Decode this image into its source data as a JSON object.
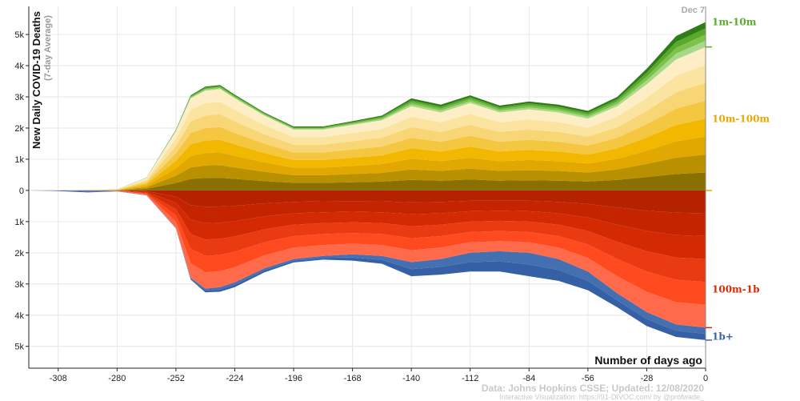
{
  "chart_data": {
    "type": "area",
    "subtype": "streamgraph",
    "ylabel": "New Daily COVID-19 Deaths",
    "ylabel_sub": "(7-day Average)",
    "xlabel": "Number of days ago",
    "x_ticks": [
      -308,
      -280,
      -252,
      -224,
      -196,
      -168,
      -140,
      -112,
      -84,
      -56,
      -28,
      0
    ],
    "x_tick_labels": [
      "-308",
      "-280",
      "-252",
      "-224",
      "-196",
      "-168",
      "-140",
      "-112",
      "-84",
      "-56",
      "-28",
      "0"
    ],
    "x_range": [
      -322,
      0
    ],
    "y_ticks": [
      5000,
      4000,
      3000,
      2000,
      1000,
      0,
      -1000,
      -2000,
      -3000,
      -4000,
      -5000
    ],
    "y_tick_labels": [
      "5k",
      "4k",
      "3k",
      "2k",
      "1k",
      "0",
      "1k",
      "2k",
      "3k",
      "4k",
      "5k"
    ],
    "y_range": [
      -5700,
      5900
    ],
    "end_date_label": "Dec 7",
    "x": [
      -322,
      -308,
      -294,
      -280,
      -266,
      -252,
      -245,
      -238,
      -231,
      -224,
      -210,
      -196,
      -182,
      -168,
      -154,
      -140,
      -126,
      -112,
      -98,
      -84,
      -70,
      -56,
      -42,
      -28,
      -14,
      0
    ],
    "series": [
      {
        "name": "1b+",
        "color": "#3a64a8",
        "values": [
          0,
          20,
          60,
          10,
          10,
          20,
          60,
          120,
          150,
          150,
          130,
          110,
          120,
          200,
          250,
          450,
          500,
          600,
          650,
          750,
          700,
          600,
          450,
          450,
          400,
          400
        ]
      },
      {
        "name": "100m-1b",
        "color": "#d42a04",
        "values": [
          0,
          2,
          5,
          20,
          150,
          1200,
          2800,
          3150,
          3100,
          2950,
          2500,
          2200,
          2100,
          2050,
          2100,
          2300,
          2200,
          2000,
          1950,
          2000,
          2200,
          2600,
          3300,
          3900,
          4300,
          4400
        ]
      },
      {
        "name": "10m-100m",
        "color": "#f0b000",
        "values": [
          0,
          2,
          5,
          30,
          400,
          1900,
          2950,
          3200,
          3250,
          2950,
          2400,
          1950,
          1950,
          2100,
          2250,
          2700,
          2500,
          2800,
          2500,
          2600,
          2500,
          2300,
          2700,
          3400,
          4200,
          4600
        ]
      },
      {
        "name": "1m-10m",
        "color": "#7cc24b",
        "values": [
          0,
          0,
          0,
          2,
          10,
          50,
          100,
          130,
          130,
          120,
          100,
          100,
          100,
          120,
          150,
          250,
          250,
          250,
          220,
          250,
          250,
          250,
          300,
          500,
          750,
          800
        ]
      }
    ],
    "legend": [
      {
        "label": "1m-10m",
        "color": "#5aa82c"
      },
      {
        "label": "10m-100m",
        "color": "#e8a800"
      },
      {
        "label": "100m-1b",
        "color": "#d42a04"
      },
      {
        "label": "1b+",
        "color": "#3a64a8"
      }
    ]
  },
  "footer": {
    "source": "Data: Johns Hopkins CSSE; Updated: 12/08/2020",
    "credit": "Interactive Visualization: https://91-DIVOC.com/ by @profwade_"
  }
}
